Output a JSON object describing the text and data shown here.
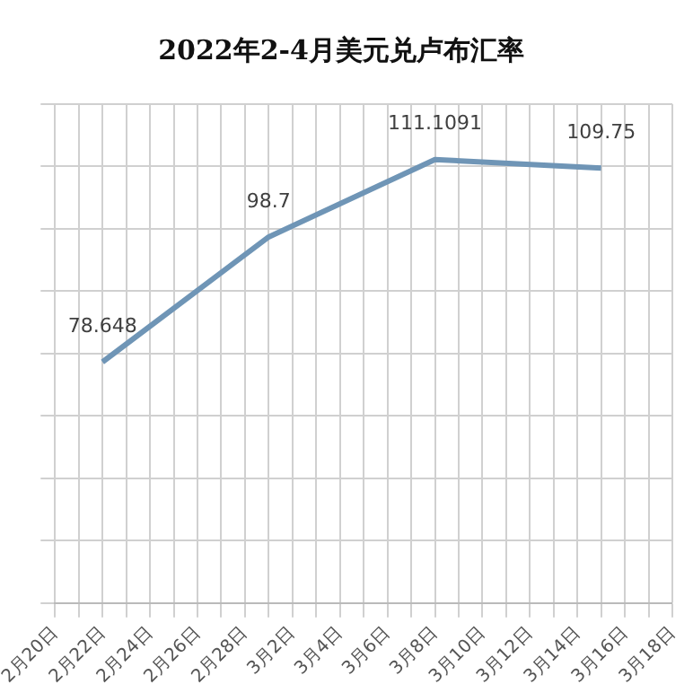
{
  "chart_data": {
    "type": "line",
    "title": "2022年2-4月美元兑卢布汇率",
    "categories": [
      "2月20日",
      null,
      "2月22日",
      null,
      "2月24日",
      null,
      "2月26日",
      null,
      "2月28日",
      null,
      "3月2日",
      null,
      "3月4日",
      null,
      "3月6日",
      null,
      "3月8日",
      null,
      "3月10日",
      null,
      "3月12日",
      null,
      "3月14日",
      null,
      "3月16日",
      null,
      "3月18日"
    ],
    "series": [
      {
        "color": "#6f95b6",
        "values": [
          null,
          null,
          78.648,
          null,
          null,
          null,
          null,
          null,
          null,
          98.7,
          null,
          null,
          null,
          null,
          null,
          null,
          111.1091,
          null,
          null,
          null,
          null,
          null,
          null,
          109.75,
          null,
          null,
          null
        ]
      }
    ],
    "ylim": [
      40,
      120
    ],
    "yticks": [
      {
        "value": 40,
        "label": null
      },
      {
        "value": 50,
        "label": null
      },
      {
        "value": 60,
        "label": null
      },
      {
        "value": 70,
        "label": null
      },
      {
        "value": 80,
        "label": null
      },
      {
        "value": 90,
        "label": null
      },
      {
        "value": 100,
        "label": null
      },
      {
        "value": 110,
        "label": null
      },
      {
        "value": 120,
        "label": null
      }
    ],
    "tick_labels": "x",
    "grid": true,
    "data_labels": true,
    "marker": "none",
    "line_style": "solid",
    "legend": false
  }
}
